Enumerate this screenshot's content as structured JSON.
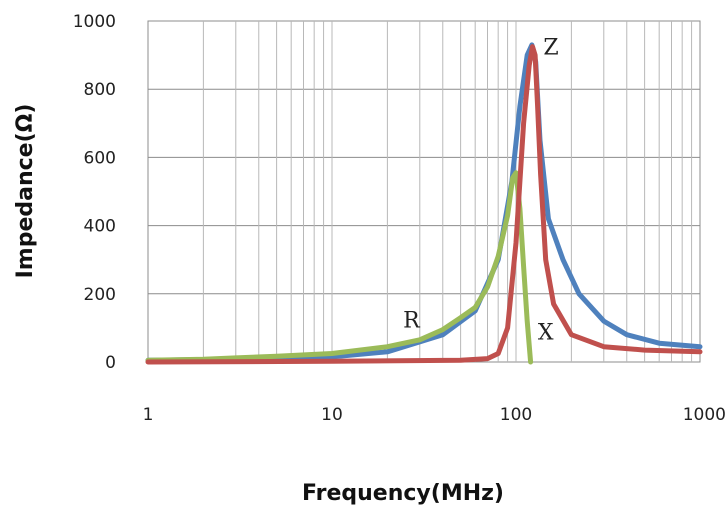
{
  "chart_data": {
    "type": "line",
    "xlabel": "Frequency(MHz)",
    "ylabel": "Impedance(Ω)",
    "xscale": "log",
    "xlim": [
      1,
      1000
    ],
    "ylim": [
      0,
      1000
    ],
    "xticks": [
      1,
      10,
      100,
      1000
    ],
    "xtick_labels": [
      "1",
      "10",
      "100",
      "1000"
    ],
    "yticks": [
      0,
      200,
      400,
      600,
      800,
      1000
    ],
    "ytick_labels": [
      "0",
      "200",
      "400",
      "600",
      "800",
      "1000"
    ],
    "grid": true,
    "series": [
      {
        "name": "Z",
        "color": "#4f81bd",
        "x": [
          1,
          3,
          10,
          20,
          40,
          60,
          80,
          95,
          105,
          115,
          122,
          128,
          135,
          150,
          180,
          220,
          300,
          400,
          600,
          1000
        ],
        "y": [
          5,
          8,
          15,
          30,
          80,
          150,
          300,
          530,
          750,
          900,
          930,
          880,
          650,
          420,
          300,
          200,
          120,
          80,
          55,
          45
        ]
      },
      {
        "name": "X",
        "color": "#c0504d",
        "x": [
          1,
          10,
          50,
          70,
          80,
          90,
          100,
          110,
          118,
          123,
          127,
          131,
          136,
          145,
          160,
          200,
          300,
          500,
          1000
        ],
        "y": [
          0,
          2,
          5,
          10,
          25,
          100,
          350,
          700,
          870,
          925,
          900,
          750,
          550,
          300,
          170,
          80,
          45,
          35,
          30
        ]
      },
      {
        "name": "R",
        "color": "#9bbb59",
        "x": [
          1,
          2,
          3,
          5,
          10,
          20,
          30,
          40,
          50,
          60,
          70,
          80,
          90,
          96,
          100,
          105,
          110,
          115,
          120
        ],
        "y": [
          5,
          8,
          12,
          17,
          25,
          45,
          65,
          95,
          130,
          160,
          220,
          310,
          430,
          540,
          555,
          450,
          280,
          120,
          0
        ]
      }
    ],
    "annotations": [
      {
        "text": "Z",
        "x": 155,
        "y": 925
      },
      {
        "text": "R",
        "x": 27,
        "y": 125
      },
      {
        "text": "X",
        "x": 145,
        "y": 90
      }
    ]
  }
}
